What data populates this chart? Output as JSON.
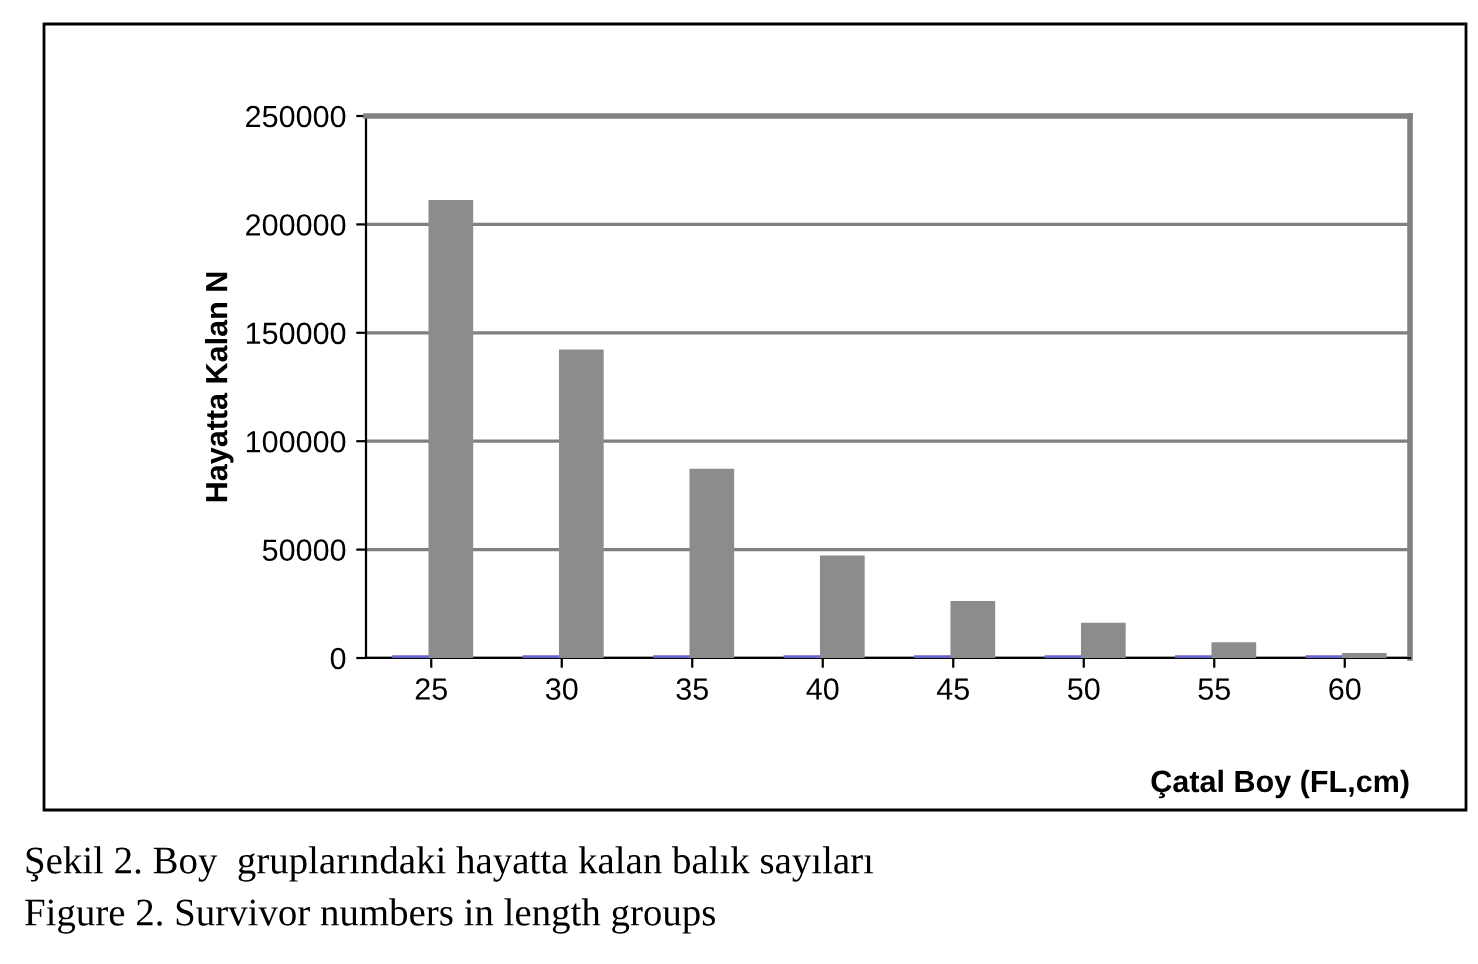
{
  "chart_data": {
    "type": "bar",
    "xlabel": "Çatal Boy (FL,cm)",
    "ylabel": "Hayatta Kalan N",
    "categories": [
      "25",
      "30",
      "35",
      "40",
      "45",
      "50",
      "55",
      "60"
    ],
    "series": [
      {
        "color": "#6666cc",
        "values": [
          0,
          0,
          0,
          0,
          0,
          0,
          0,
          0
        ]
      },
      {
        "color": "#8c8c8c",
        "values": [
          210000,
          141000,
          86000,
          46000,
          25000,
          15000,
          6000,
          1000
        ]
      }
    ],
    "ylim": [
      0,
      250000
    ],
    "yticks": [
      0,
      50000,
      100000,
      150000,
      200000,
      250000
    ],
    "grid": "y",
    "legend": false,
    "annotations": [
      "Şekil 2. Boy  gruplarındaki hayatta kalan balık sayıları",
      "Figure 2. Survivor numbers in length groups"
    ]
  }
}
